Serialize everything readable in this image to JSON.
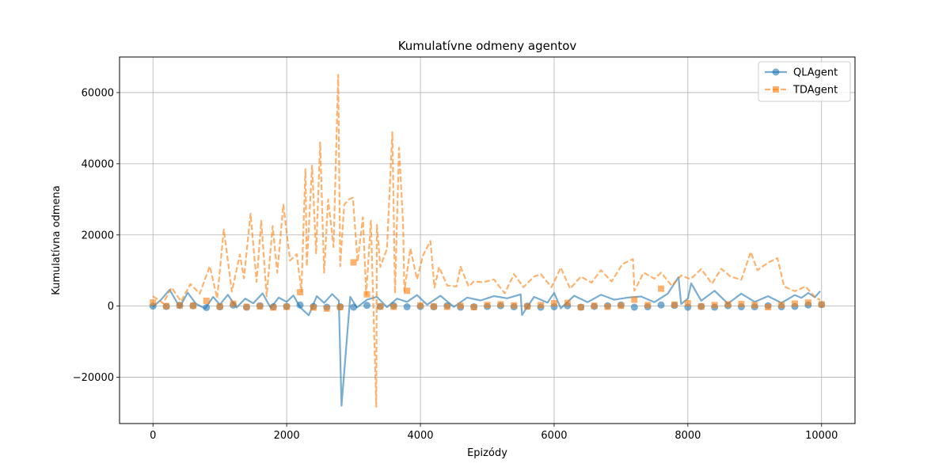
{
  "chart_data": {
    "type": "line",
    "title": "Kumulatívne odmeny agentov",
    "xlabel": "Epizódy",
    "ylabel": "Kumulatívna odmena",
    "xlim": [
      -500,
      10500
    ],
    "ylim": [
      -33000,
      70000
    ],
    "xticks": [
      0,
      2000,
      4000,
      6000,
      8000,
      10000
    ],
    "xtick_labels": [
      "0",
      "2000",
      "4000",
      "6000",
      "8000",
      "10000"
    ],
    "yticks": [
      -20000,
      0,
      20000,
      40000,
      60000
    ],
    "ytick_labels": [
      "−20000",
      "0",
      "20000",
      "40000",
      "60000"
    ],
    "grid": true,
    "legend_position": "top-right",
    "series": [
      {
        "name": "QLAgent",
        "color": "#1f77b4",
        "marker": "circle",
        "linestyle": "solid",
        "opacity": 0.6,
        "x": [
          0,
          120,
          250,
          400,
          520,
          640,
          780,
          900,
          1000,
          1120,
          1250,
          1380,
          1500,
          1640,
          1760,
          1880,
          2000,
          2100,
          2200,
          2330,
          2450,
          2560,
          2680,
          2780,
          2820,
          2950,
          3050,
          3200,
          3350,
          3500,
          3650,
          3800,
          3950,
          4100,
          4300,
          4500,
          4700,
          4900,
          5100,
          5300,
          5500,
          5520,
          5700,
          5900,
          6000,
          6100,
          6300,
          6500,
          6700,
          6900,
          7100,
          7300,
          7500,
          7700,
          7860,
          7900,
          8000,
          8050,
          8200,
          8400,
          8600,
          8800,
          9000,
          9200,
          9400,
          9600,
          9700,
          9800,
          9900,
          9980
        ],
        "y": [
          -200,
          1800,
          4600,
          -300,
          3800,
          700,
          -700,
          2600,
          400,
          3200,
          -400,
          2100,
          800,
          3600,
          -500,
          2400,
          1200,
          3000,
          -300,
          -2600,
          2800,
          900,
          3400,
          1500,
          -28000,
          2600,
          -400,
          1800,
          2600,
          -300,
          2100,
          1200,
          3100,
          400,
          2900,
          -200,
          2400,
          1600,
          2800,
          2200,
          3300,
          -2500,
          2600,
          1000,
          3700,
          -600,
          2900,
          1100,
          3200,
          1800,
          2400,
          2700,
          1100,
          3500,
          8100,
          600,
          2100,
          6400,
          1500,
          4300,
          700,
          3500,
          1200,
          2800,
          900,
          3100,
          2300,
          3700,
          2500,
          4200
        ]
      },
      {
        "name": "TDAgent",
        "color": "#ff7f0e",
        "marker": "square",
        "linestyle": "dashed",
        "opacity": 0.6,
        "x": [
          0,
          150,
          280,
          420,
          560,
          700,
          850,
          960,
          1060,
          1180,
          1300,
          1360,
          1460,
          1550,
          1620,
          1700,
          1790,
          1860,
          1950,
          2050,
          2150,
          2220,
          2280,
          2300,
          2380,
          2440,
          2500,
          2560,
          2620,
          2700,
          2770,
          2800,
          2860,
          2930,
          2990,
          3060,
          3140,
          3190,
          3260,
          3340,
          3350,
          3400,
          3500,
          3580,
          3620,
          3680,
          3740,
          3760,
          3850,
          3950,
          4040,
          4150,
          4210,
          4280,
          4400,
          4540,
          4600,
          4720,
          4800,
          4940,
          5100,
          5260,
          5400,
          5540,
          5700,
          5800,
          5960,
          6100,
          6240,
          6400,
          6560,
          6700,
          6860,
          7020,
          7180,
          7200,
          7340,
          7500,
          7600,
          7760,
          7900,
          8040,
          8200,
          8360,
          8500,
          8640,
          8800,
          8940,
          9040,
          9200,
          9340,
          9440,
          9600,
          9760,
          9900,
          9980
        ],
        "y": [
          2800,
          800,
          5200,
          1300,
          6200,
          3500,
          11200,
          2200,
          21500,
          4100,
          14500,
          7800,
          26000,
          6800,
          24000,
          2800,
          22500,
          9400,
          28500,
          12800,
          14600,
          4100,
          38500,
          11200,
          39500,
          14800,
          46000,
          9400,
          30000,
          16600,
          65000,
          11200,
          28500,
          30000,
          30500,
          12500,
          25000,
          3200,
          24000,
          -28300,
          22800,
          11000,
          16100,
          48900,
          3600,
          44500,
          23500,
          4200,
          16200,
          7500,
          14300,
          18300,
          5200,
          11000,
          5800,
          5500,
          11100,
          5500,
          6900,
          6700,
          7500,
          3600,
          9000,
          5300,
          8300,
          9000,
          5300,
          10800,
          4900,
          8300,
          6600,
          10100,
          6900,
          11800,
          13200,
          4300,
          9400,
          7700,
          9400,
          5700,
          8600,
          7600,
          10400,
          6300,
          10500,
          8300,
          7400,
          15200,
          10100,
          12200,
          13500,
          5500,
          4200,
          5500,
          2600,
          1700
        ]
      }
    ],
    "markers": [
      {
        "series": "QLAgent",
        "x": [
          0,
          200,
          400,
          600,
          800,
          1000,
          1200,
          1400,
          1600,
          1800,
          2000,
          2200,
          2400,
          2600,
          2800,
          3000,
          3200,
          3400,
          3600,
          3800,
          4000,
          4200,
          4400,
          4600,
          4800,
          5000,
          5200,
          5400,
          5600,
          5800,
          6000,
          6200,
          6400,
          6600,
          6800,
          7000,
          7200,
          7400,
          7600,
          7800,
          8000,
          8200,
          8400,
          8600,
          8800,
          9000,
          9200,
          9400,
          9600,
          9800,
          10000
        ],
        "y": [
          0,
          -100,
          200,
          100,
          -400,
          -200,
          300,
          -300,
          100,
          -200,
          -100,
          300,
          -100,
          -300,
          -200,
          -300,
          200,
          -100,
          100,
          -200,
          -100,
          -200,
          100,
          -300,
          -200,
          -100,
          100,
          -200,
          0,
          -300,
          -200,
          100,
          -300,
          -100,
          100,
          300,
          -300,
          -200,
          300,
          200,
          -300,
          -100,
          -300,
          100,
          -200,
          -200,
          100,
          -200,
          -100,
          300,
          400
        ]
      },
      {
        "series": "TDAgent",
        "x": [
          0,
          200,
          400,
          600,
          800,
          1000,
          1200,
          1400,
          1600,
          1800,
          2000,
          2200,
          2400,
          2600,
          2800,
          3000,
          3200,
          3400,
          3600,
          3800,
          4000,
          4200,
          4400,
          4600,
          4800,
          5000,
          5200,
          5400,
          5600,
          5800,
          6000,
          6200,
          6400,
          6600,
          6800,
          7000,
          7200,
          7400,
          7600,
          7800,
          8000,
          8200,
          8400,
          8600,
          8800,
          9000,
          9200,
          9400,
          9600,
          9800,
          10000
        ],
        "y": [
          1000,
          0,
          200,
          100,
          1500,
          -100,
          700,
          -200,
          -100,
          -400,
          -200,
          3900,
          -400,
          -700,
          -300,
          12300,
          3300,
          -100,
          -200,
          4300,
          200,
          -100,
          -200,
          100,
          -300,
          300,
          500,
          200,
          -100,
          300,
          800,
          900,
          -300,
          100,
          -200,
          100,
          1800,
          300,
          4900,
          400,
          800,
          -100,
          300,
          500,
          600,
          300,
          -300,
          300,
          700,
          1000,
          500
        ]
      }
    ]
  }
}
